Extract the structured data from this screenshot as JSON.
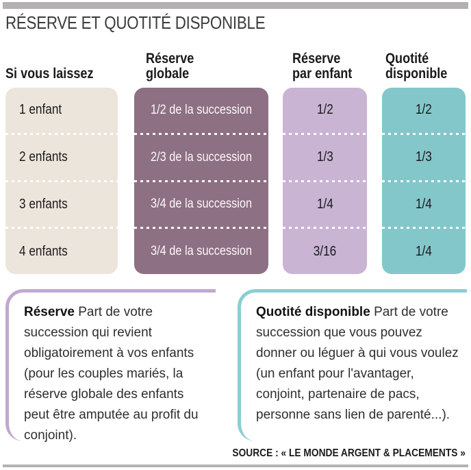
{
  "chart_data": {
    "type": "table",
    "title": "RÉSERVE ET QUOTITÉ DISPONIBLE",
    "columns": [
      "Si vous laissez",
      "Réserve globale",
      "Réserve par enfant",
      "Quotité disponible"
    ],
    "rows": [
      [
        "1 enfant",
        "1/2 de la succession",
        "1/2",
        "1/2"
      ],
      [
        "2 enfants",
        "2/3 de la succession",
        "1/3",
        "1/3"
      ],
      [
        "3 enfants",
        "3/4 de la succession",
        "1/4",
        "1/4"
      ],
      [
        "4 enfants",
        "3/4 de la succession",
        "3/16",
        "1/4"
      ]
    ],
    "grid": false,
    "legend_position": "none",
    "source": "SOURCE : « LE MONDE ARGENT & PLACEMENTS »"
  },
  "table": {
    "header_laissez": "Si vous laissez",
    "header_globale": [
      "Réserve",
      "globale"
    ],
    "header_enfant": [
      "Réserve",
      "par enfant"
    ],
    "header_quotite": [
      "Quotité",
      "disponible"
    ]
  },
  "definitions": [
    {
      "term": "Réserve",
      "text": "Part de votre succession qui revient obligatoirement à vos enfants (pour les couples mariés, la réserve globale des enfants peut être amputée au profit du conjoint)."
    },
    {
      "term": "Quotité disponible",
      "text": "Part de votre succession que vous pouvez donner ou léguer à qui vous voulez (un enfant pour l'avantager, conjoint, partenaire de pacs, personne sans lien de parenté...)."
    }
  ],
  "source_label": "SOURCE : « LE MONDE ARGENT & PLACEMENTS »",
  "colors": {
    "bar": "#b3b2b1",
    "cream": "#ece5dc",
    "mauve": "#8d7083",
    "lilac": "#c9b4d4",
    "teal": "#83c7cb",
    "border-reserve": "#c2a8d0",
    "border-quotite": "#8ccdd2",
    "ink": "#1a1a1a",
    "title-ink": "#3c3c3c",
    "cell-white": "#fdf7fa"
  }
}
